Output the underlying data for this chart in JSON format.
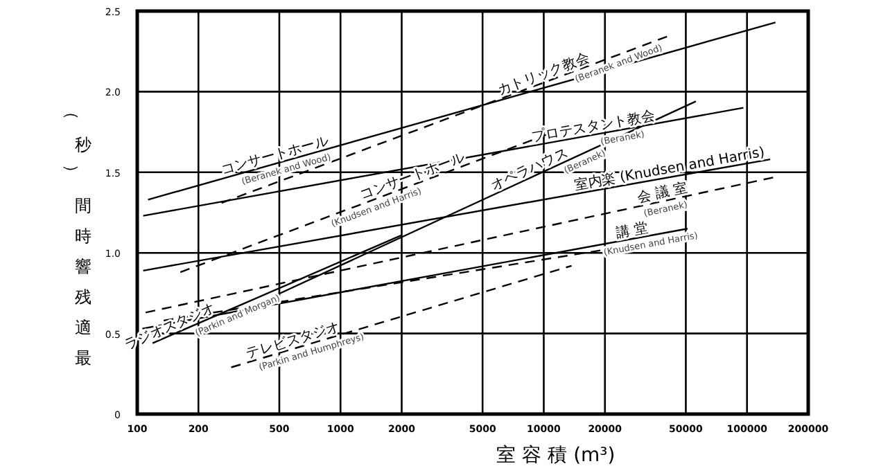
{
  "chart_data": {
    "type": "line",
    "xlabel": "室 容 積 (m³)",
    "ylabel": "最適残響時間（秒）",
    "log": "x",
    "grid": true,
    "xlim": [
      100,
      200000
    ],
    "ylim": [
      0,
      2.5
    ],
    "xticks": [
      100,
      200,
      500,
      1000,
      2000,
      5000,
      10000,
      20000,
      50000,
      100000,
      200000
    ],
    "yticks": [
      0,
      0.5,
      {
        "value": 1,
        "label": "1.0"
      },
      1.5,
      {
        "value": 2,
        "label": "2.0"
      },
      2.5
    ],
    "series": [
      {
        "color": "#000000",
        "line_style": "solid",
        "x": [
          113,
          138000
        ],
        "values": [
          1.33,
          2.43
        ]
      },
      {
        "color": "#000000",
        "line_style": "solid",
        "x": [
          107,
          96000
        ],
        "values": [
          1.23,
          1.9
        ]
      },
      {
        "color": "#000000",
        "line_style": "dashed",
        "x": [
          260,
          42000
        ],
        "values": [
          1.31,
          2.35
        ]
      },
      {
        "color": "#000000",
        "line_style": "dashed",
        "x": [
          163,
          11200
        ],
        "values": [
          0.88,
          1.75
        ]
      },
      {
        "color": "#000000",
        "line_style": "solid",
        "x": [
          486,
          56000
        ],
        "values": [
          0.74,
          1.94
        ]
      },
      {
        "color": "#000000",
        "line_style": "solid",
        "x": [
          107,
          130000
        ],
        "values": [
          0.89,
          1.58
        ]
      },
      {
        "color": "#000000",
        "line_style": "dashed",
        "x": [
          110,
          137000
        ],
        "values": [
          0.63,
          1.47
        ]
      },
      {
        "color": "#000000",
        "line_style": "solid",
        "x": [
          106,
          51000
        ],
        "values": [
          0.53,
          1.15
        ]
      },
      {
        "color": "#000000",
        "line_style": "dashed",
        "x": [
          135,
          20000
        ],
        "values": [
          0.58,
          1.02
        ]
      },
      {
        "color": "#000000",
        "line_style": "solid",
        "x": [
          119,
          2000
        ],
        "values": [
          0.44,
          1.11
        ]
      },
      {
        "color": "#000000",
        "line_style": "dashed",
        "x": [
          290,
          13700
        ],
        "values": [
          0.29,
          0.92
        ]
      }
    ],
    "annotations": [
      {
        "text": "コンサートホール",
        "x": 487,
        "y": 1.556
      },
      {
        "text": "(Beranek and Wood)",
        "x": 527,
        "y": 1.568
      },
      {
        "text": "コンサートホール",
        "x": 2330,
        "y": 1.427
      },
      {
        "text": "(Knudsen and Harris)",
        "x": 1450,
        "y": 1.33
      },
      {
        "text": "カトリック教会",
        "x": 10300,
        "y": 2.063
      },
      {
        "text": "(Beranek and Wood)",
        "x": 22600,
        "y": 2.223
      },
      {
        "text": "プロテスタント教会",
        "x": 17800,
        "y": 1.734
      },
      {
        "text": "(Beranek)",
        "x": 24000,
        "y": 1.763
      },
      {
        "text": "オペラハウス",
        "x": 8840,
        "y": 1.473
      },
      {
        "text": "(Beranek)",
        "x": 15300,
        "y": 1.612
      },
      {
        "text": "室内楽 (Knudsen and Harris)",
        "x": 42300,
        "y": 1.471
      },
      {
        "text": "会 議 室",
        "x": 39000,
        "y": 1.322
      },
      {
        "text": "(Beranek)",
        "x": 39000,
        "y": 1.322
      },
      {
        "text": "講 堂",
        "x": 27700,
        "y": 1.089
      },
      {
        "text": "(Knudsen and Harris)",
        "x": 33000,
        "y": 1.106
      },
      {
        "text": "(Parkin and Morgan)",
        "x": 300,
        "y": 0.659
      },
      {
        "text": "ラジオスタジオ",
        "x": 150,
        "y": 0.495
      },
      {
        "text": "テレビスタジオ",
        "x": 600,
        "y": 0.409
      },
      {
        "text": "(Parkin and Humphreys)",
        "x": 700,
        "y": 0.434
      }
    ]
  }
}
